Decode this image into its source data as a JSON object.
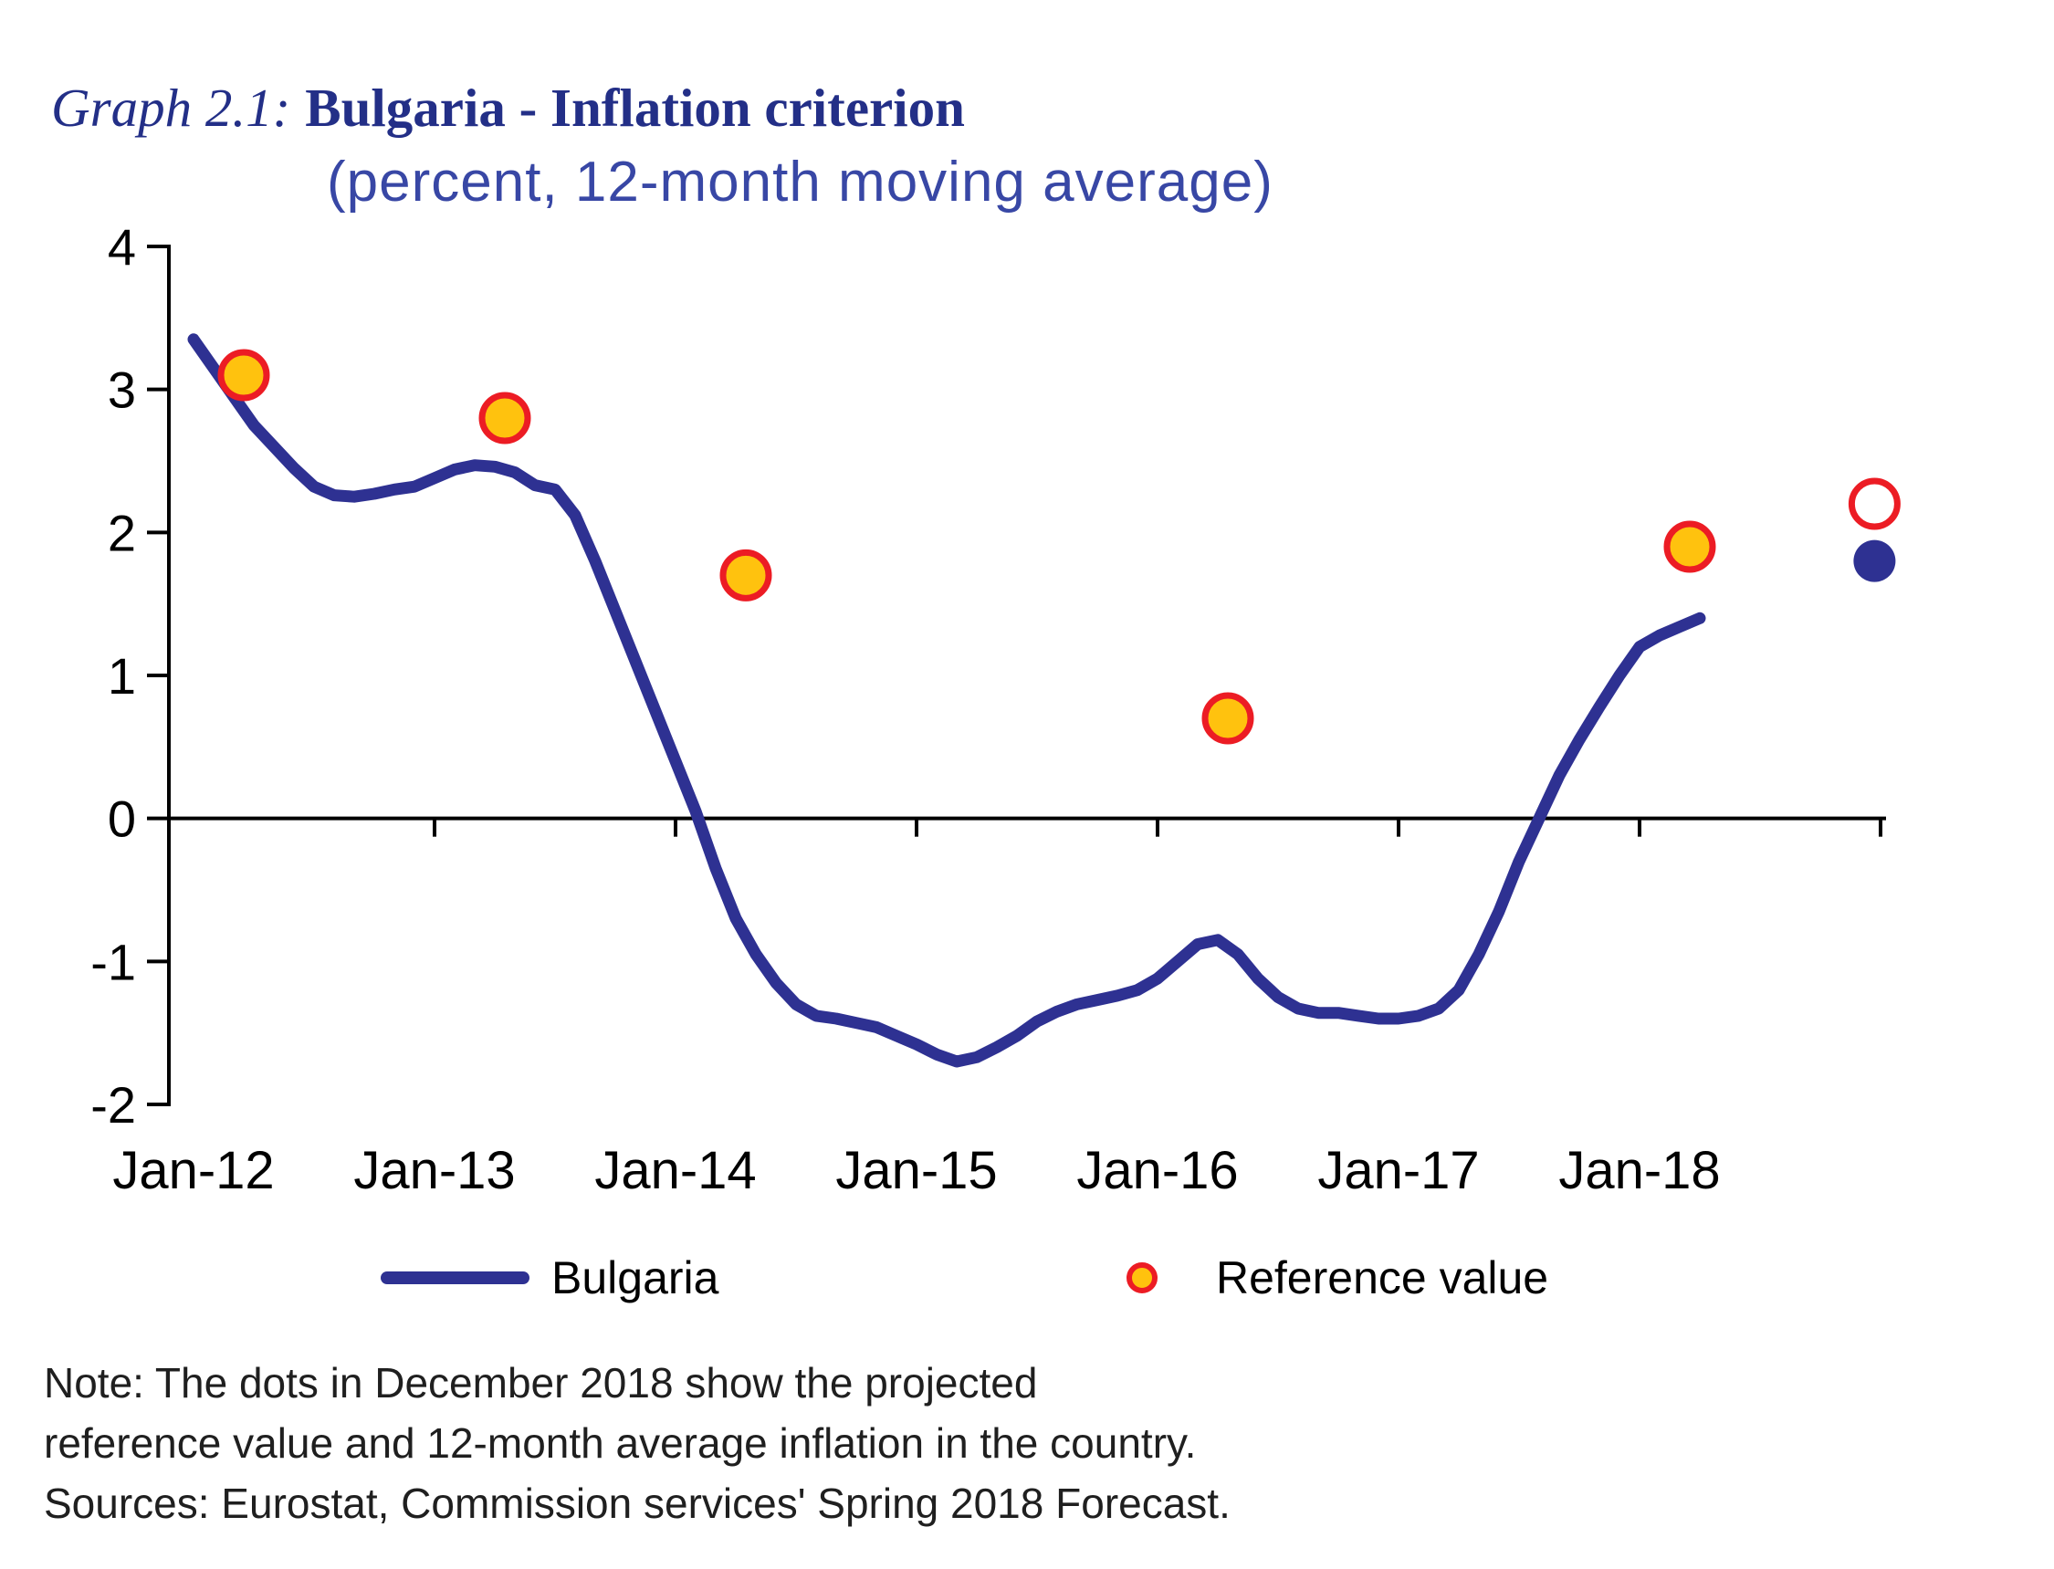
{
  "title": {
    "prefix": "Graph 2.1:",
    "main": "Bulgaria - Inflation criterion",
    "subtitle": "(percent, 12-month moving average)"
  },
  "legend": {
    "bulgaria": "Bulgaria",
    "reference": "Reference value"
  },
  "note_lines": [
    "Note: The dots  in December 2018 show the projected",
    "reference value and 12-month average inflation in the country.",
    "Sources: Eurostat, Commission services' Spring 2018 Forecast."
  ],
  "chart_data": {
    "type": "line",
    "title": "Bulgaria - Inflation criterion",
    "subtitle": "(percent, 12-month moving average)",
    "ylabel": "percent, 12-month moving average",
    "ylim": [
      -2,
      4
    ],
    "yticks": [
      4,
      3,
      2,
      1,
      0,
      -1,
      -2
    ],
    "grid": false,
    "legend_position": "bottom",
    "x_unit": "months since Jan-2012",
    "x_months_total": 84,
    "xtick_labels": [
      "Jan-12",
      "Jan-13",
      "Jan-14",
      "Jan-15",
      "Jan-16",
      "Jan-17",
      "Jan-18"
    ],
    "series": [
      {
        "name": "Bulgaria",
        "start_month": "Jan-12",
        "frequency": "monthly",
        "values": [
          3.35,
          3.15,
          2.95,
          2.75,
          2.6,
          2.45,
          2.32,
          2.26,
          2.25,
          2.27,
          2.3,
          2.32,
          2.38,
          2.44,
          2.47,
          2.46,
          2.42,
          2.33,
          2.3,
          2.12,
          1.8,
          1.45,
          1.1,
          0.75,
          0.4,
          0.05,
          -0.35,
          -0.7,
          -0.95,
          -1.15,
          -1.3,
          -1.38,
          -1.4,
          -1.43,
          -1.46,
          -1.52,
          -1.58,
          -1.65,
          -1.7,
          -1.67,
          -1.6,
          -1.52,
          -1.42,
          -1.35,
          -1.3,
          -1.27,
          -1.24,
          -1.2,
          -1.12,
          -1.0,
          -0.88,
          -0.85,
          -0.95,
          -1.12,
          -1.25,
          -1.33,
          -1.36,
          -1.36,
          -1.38,
          -1.4,
          -1.4,
          -1.38,
          -1.33,
          -1.2,
          -0.95,
          -0.65,
          -0.3,
          0.0,
          0.3,
          0.55,
          0.78,
          1.0,
          1.2,
          1.28,
          1.34,
          1.4
        ]
      }
    ],
    "reference_points": [
      {
        "month": "Mar-12",
        "t": 2.5,
        "value": 3.1
      },
      {
        "month": "Apr-13",
        "t": 15.5,
        "value": 2.8
      },
      {
        "month": "Apr-14",
        "t": 27.5,
        "value": 1.7
      },
      {
        "month": "Apr-16",
        "t": 51.5,
        "value": 0.7
      },
      {
        "month": "Mar-18",
        "t": 74.5,
        "value": 1.9
      }
    ],
    "projected_reference": {
      "month": "Dec-18",
      "t": 83.7,
      "value": 2.2
    },
    "projected_inflation": {
      "month": "Dec-18",
      "t": 83.7,
      "value": 1.8
    },
    "colors": {
      "line": "#2E3192",
      "dot_fill": "#FFC20E",
      "dot_stroke": "#EC1C24",
      "title": "#232F87",
      "subtitle": "#3847A5"
    }
  }
}
